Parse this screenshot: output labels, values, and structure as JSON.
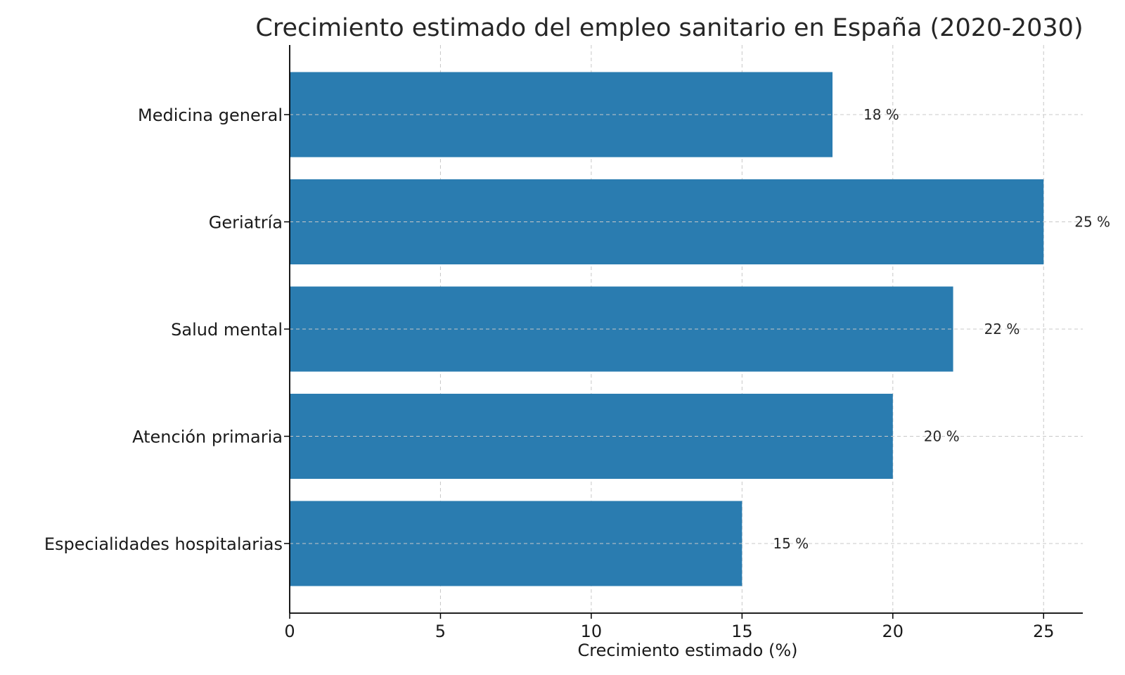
{
  "chart_data": {
    "type": "bar",
    "orientation": "horizontal",
    "title": "Crecimiento estimado del empleo sanitario en España (2020-2030)",
    "xlabel": "Crecimiento estimado (%)",
    "ylabel": "",
    "categories": [
      "Medicina general",
      "Geriatría",
      "Salud mental",
      "Atención primaria",
      "Especialidades hospitalarias"
    ],
    "values": [
      18,
      25,
      22,
      20,
      15
    ],
    "data_labels": [
      "18 %",
      "25 %",
      "22 %",
      "20 %",
      "15 %"
    ],
    "xlim": [
      0,
      26.3
    ],
    "xticks": [
      0,
      5,
      10,
      15,
      20,
      25
    ],
    "grid": true,
    "bar_color": "#2a7cb0"
  }
}
